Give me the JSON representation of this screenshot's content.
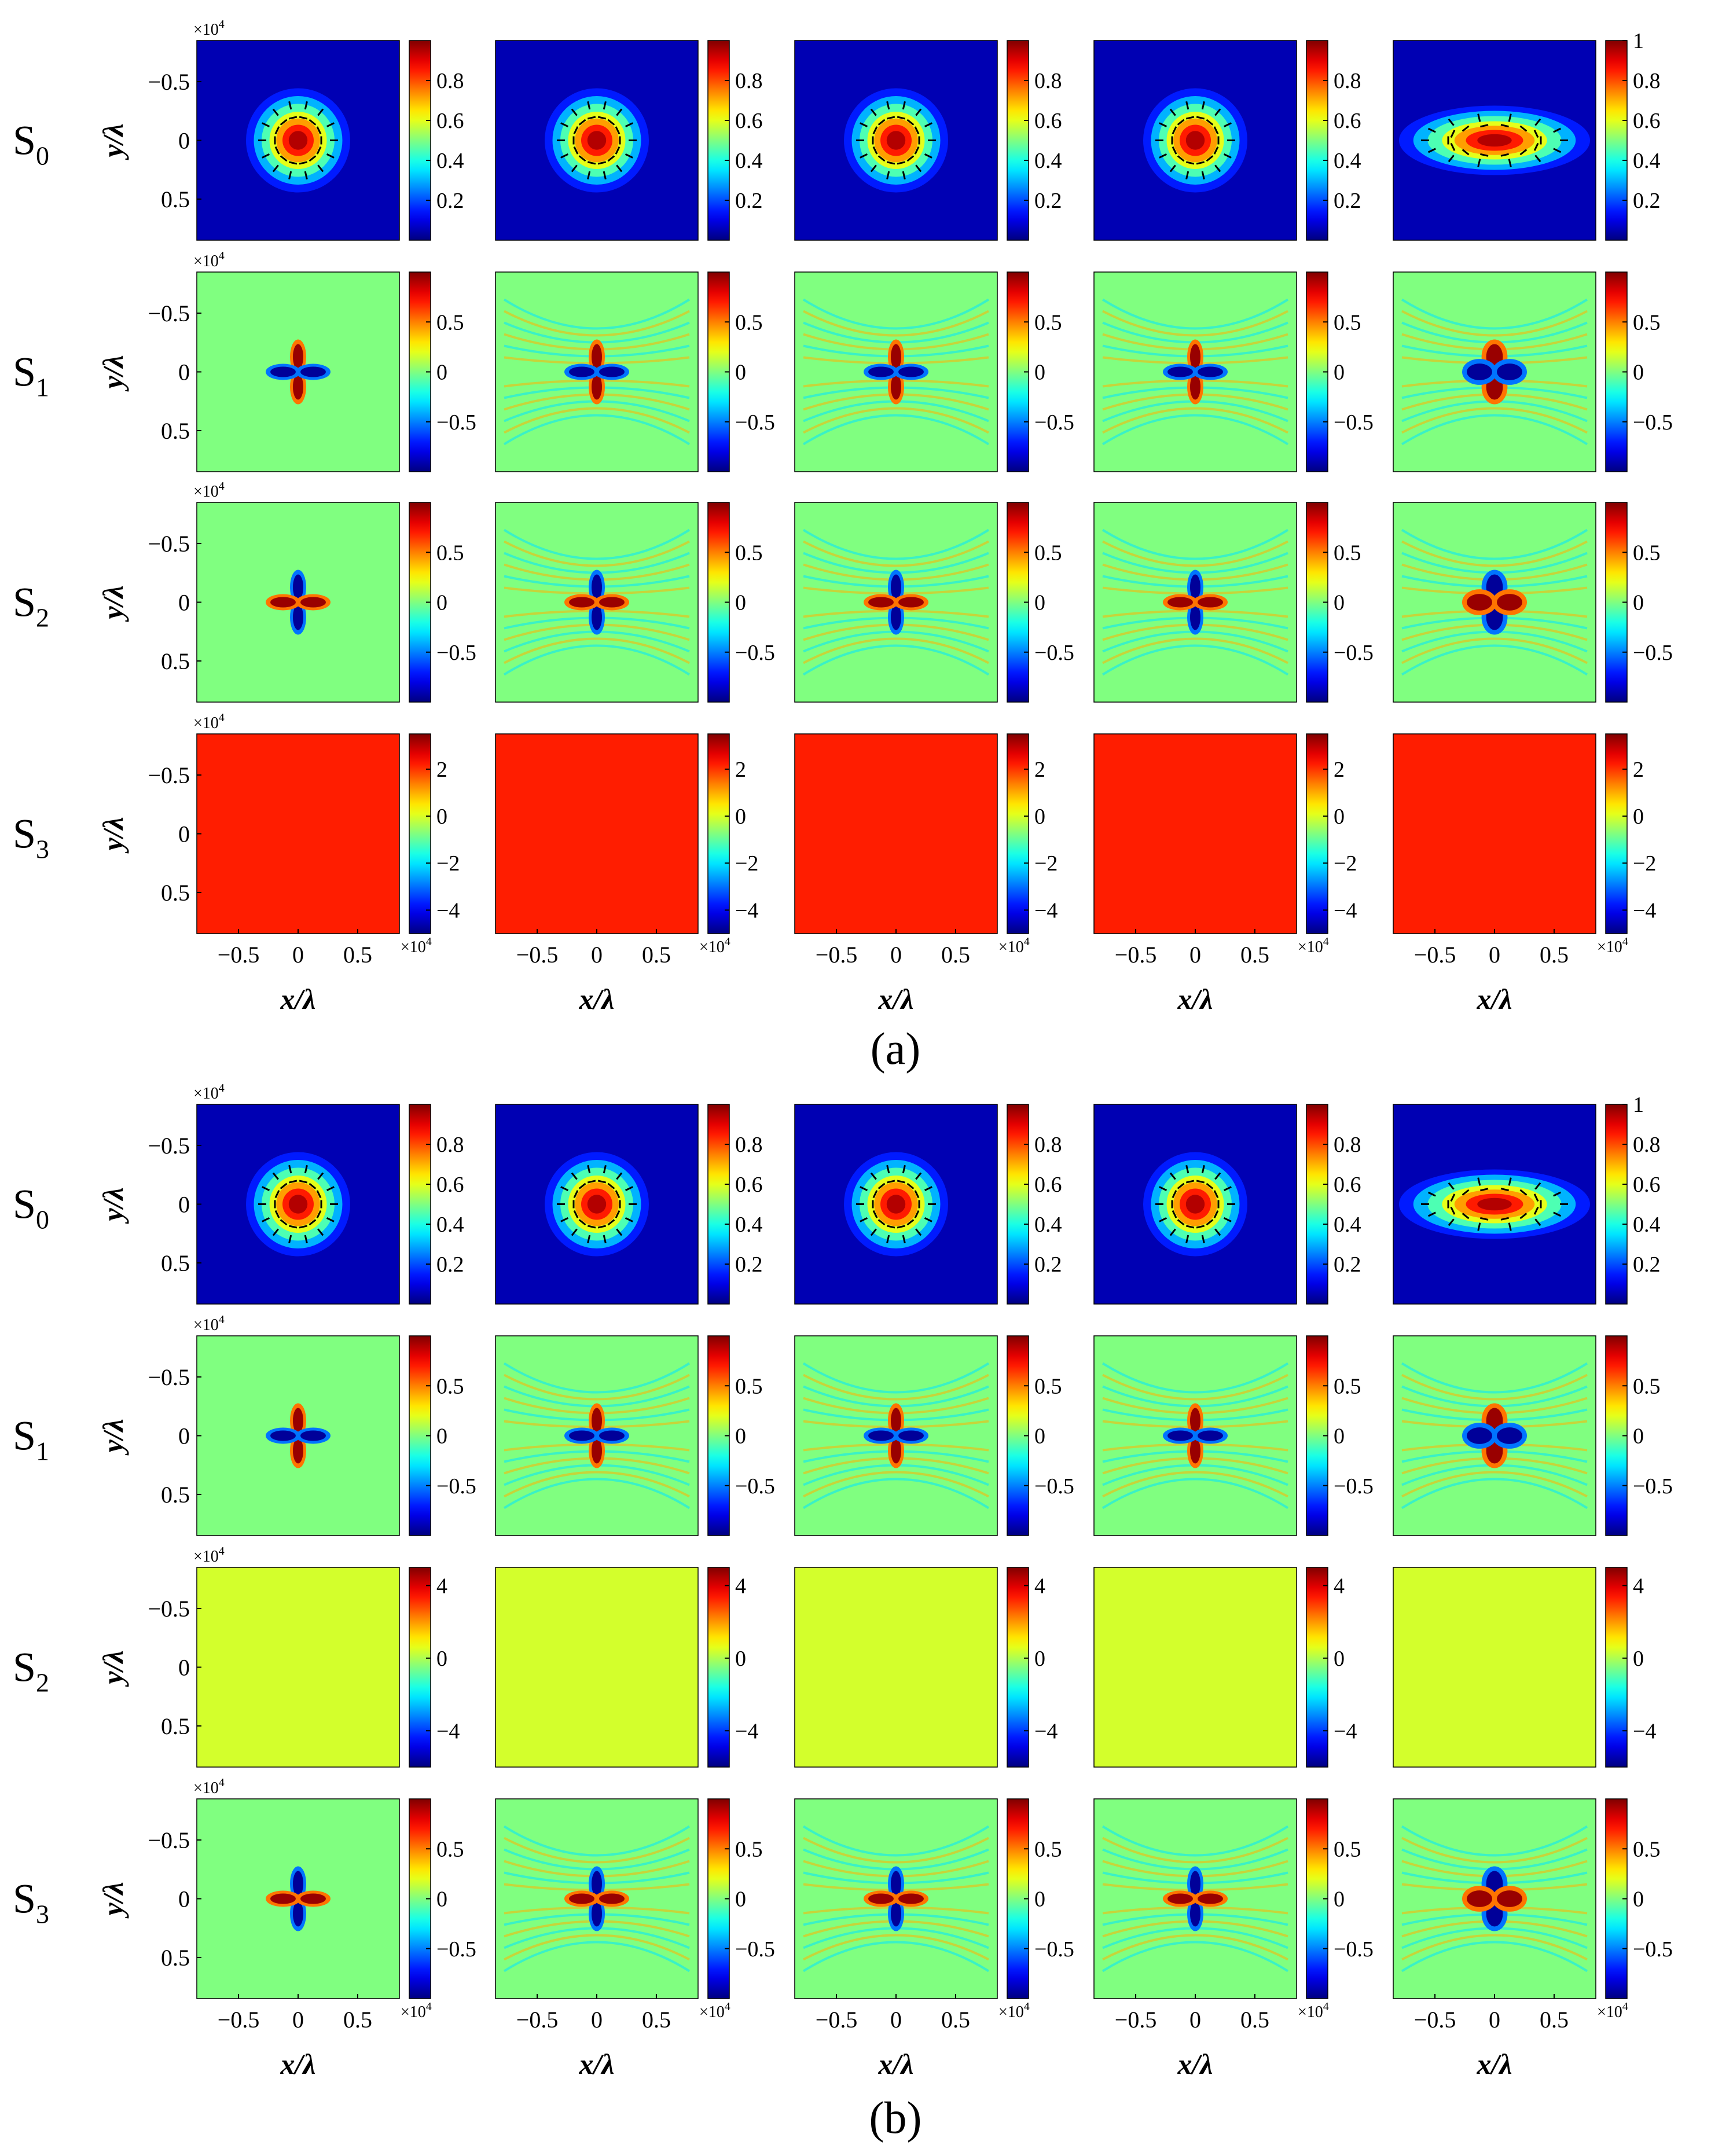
{
  "chart_data": {
    "type": "heatmap",
    "panels": [
      {
        "label": "(a)",
        "rows": [
          {
            "name": "S",
            "sub": "0",
            "colorbar": {
              "min": 0,
              "max": 1,
              "ticks": [
                0.2,
                0.4,
                0.6,
                0.8
              ],
              "tick_labels": [
                "0.2",
                "0.4",
                "0.6",
                "0.8"
              ]
            },
            "last_column_ticks": [
              0.2,
              0.4,
              0.6,
              0.8,
              1
            ],
            "last_column_tick_labels": [
              "0.2",
              "0.4",
              "0.6",
              "0.8",
              "1"
            ],
            "field": "intensity",
            "overlay": "polarization-ellipses (black, linear)"
          },
          {
            "name": "S",
            "sub": "1",
            "colorbar": {
              "min": -1,
              "max": 1,
              "ticks": [
                0.5,
                0,
                -0.5
              ],
              "tick_labels": [
                "0.5",
                "0",
                "−0.5"
              ]
            },
            "field": "four-lobe",
            "sign": 1
          },
          {
            "name": "S",
            "sub": "2",
            "colorbar": {
              "min": -1,
              "max": 1,
              "ticks": [
                0.5,
                0,
                -0.5
              ],
              "tick_labels": [
                "0.5",
                "0",
                "−0.5"
              ]
            },
            "field": "four-lobe",
            "sign": -1
          },
          {
            "name": "S",
            "sub": "3",
            "colorbar": {
              "min": -5,
              "max": 3.5,
              "ticks": [
                2,
                0,
                -2,
                -4
              ],
              "tick_labels": [
                "2",
                "0",
                "−2",
                "−4"
              ]
            },
            "field": "uniform",
            "uniform_value": 2.2
          }
        ]
      },
      {
        "label": "(b)",
        "rows": [
          {
            "name": "S",
            "sub": "0",
            "colorbar": {
              "min": 0,
              "max": 1,
              "ticks": [
                0.2,
                0.4,
                0.6,
                0.8
              ],
              "tick_labels": [
                "0.2",
                "0.4",
                "0.6",
                "0.8"
              ]
            },
            "last_column_ticks": [
              0.2,
              0.4,
              0.6,
              0.8,
              1
            ],
            "last_column_tick_labels": [
              "0.2",
              "0.4",
              "0.6",
              "0.8",
              "1"
            ],
            "field": "intensity",
            "overlay": "polarization-ellipses (black, red, green)"
          },
          {
            "name": "S",
            "sub": "1",
            "colorbar": {
              "min": -1,
              "max": 1,
              "ticks": [
                0.5,
                0,
                -0.5
              ],
              "tick_labels": [
                "0.5",
                "0",
                "−0.5"
              ]
            },
            "field": "four-lobe",
            "sign": 1
          },
          {
            "name": "S",
            "sub": "2",
            "colorbar": {
              "min": -6,
              "max": 5,
              "ticks": [
                4,
                0,
                -4
              ],
              "tick_labels": [
                "4",
                "0",
                "−4"
              ]
            },
            "field": "uniform",
            "uniform_value": 0.4
          },
          {
            "name": "S",
            "sub": "3",
            "colorbar": {
              "min": -1,
              "max": 1,
              "ticks": [
                0.5,
                0,
                -0.5
              ],
              "tick_labels": [
                "0.5",
                "0",
                "−0.5"
              ]
            },
            "field": "four-lobe",
            "sign": -1
          }
        ]
      }
    ],
    "columns": 5,
    "xlabel": "x/λ",
    "ylabel": "y/λ",
    "scale_label": "×10",
    "scale_exponent": "4",
    "x_ticks": [
      -0.5,
      0,
      0.5
    ],
    "x_tick_labels": [
      "−0.5",
      "0",
      "0.5"
    ],
    "y_ticks": [
      -0.5,
      0,
      0.5
    ],
    "y_tick_labels": [
      "−0.5",
      "0",
      "0.5"
    ],
    "xlim": [
      -0.85,
      0.85
    ],
    "ylim": [
      -0.85,
      0.85
    ],
    "colormap": "jet"
  }
}
